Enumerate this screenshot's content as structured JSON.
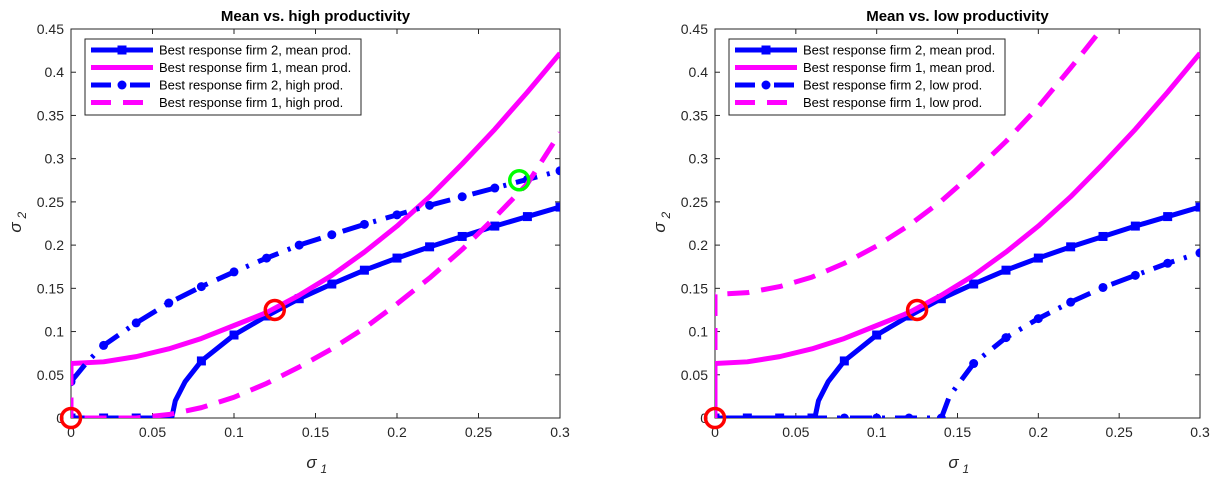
{
  "chart_data": [
    {
      "type": "line",
      "title": "Mean vs. high productivity",
      "xlabel": "σ",
      "xlabel_sub": "1",
      "ylabel": "σ",
      "ylabel_sub": "2",
      "xlim": [
        0,
        0.3
      ],
      "ylim": [
        0,
        0.45
      ],
      "xticks": [
        "0",
        "0.05",
        "0.1",
        "0.15",
        "0.2",
        "0.25",
        "0.3"
      ],
      "xtick_values": [
        0,
        0.05,
        0.1,
        0.15,
        0.2,
        0.25,
        0.3
      ],
      "yticks": [
        "0",
        "0.05",
        "0.1",
        "0.15",
        "0.2",
        "0.25",
        "0.3",
        "0.35",
        "0.4",
        "0.45"
      ],
      "ytick_values": [
        0,
        0.05,
        0.1,
        0.15,
        0.2,
        0.25,
        0.3,
        0.35,
        0.4,
        0.45
      ],
      "grid": false,
      "legend_position": "top-left",
      "series": [
        {
          "name": "Best response firm 2, mean prod.",
          "color": "#0000ff",
          "style": "solid",
          "marker": "square",
          "points": [
            [
              0,
              0
            ],
            [
              0.02,
              0
            ],
            [
              0.04,
              0
            ],
            [
              0.06,
              0
            ],
            [
              0.062,
              0.002
            ],
            [
              0.064,
              0.02
            ],
            [
              0.07,
              0.042
            ],
            [
              0.08,
              0.066
            ],
            [
              0.1,
              0.096
            ],
            [
              0.12,
              0.118
            ],
            [
              0.14,
              0.138
            ],
            [
              0.16,
              0.155
            ],
            [
              0.18,
              0.171
            ],
            [
              0.2,
              0.185
            ],
            [
              0.22,
              0.198
            ],
            [
              0.24,
              0.21
            ],
            [
              0.26,
              0.222
            ],
            [
              0.28,
              0.233
            ],
            [
              0.3,
              0.244
            ]
          ],
          "marker_points": [
            [
              0,
              0
            ],
            [
              0.02,
              0
            ],
            [
              0.04,
              0
            ],
            [
              0.06,
              0
            ],
            [
              0.08,
              0.066
            ],
            [
              0.1,
              0.096
            ],
            [
              0.12,
              0.118
            ],
            [
              0.14,
              0.138
            ],
            [
              0.16,
              0.155
            ],
            [
              0.18,
              0.171
            ],
            [
              0.2,
              0.185
            ],
            [
              0.22,
              0.198
            ],
            [
              0.24,
              0.21
            ],
            [
              0.26,
              0.222
            ],
            [
              0.28,
              0.233
            ],
            [
              0.3,
              0.244
            ]
          ]
        },
        {
          "name": "Best response firm 1, mean prod.",
          "color": "#ff00ff",
          "style": "solid",
          "marker": "none",
          "points": [
            [
              0,
              0.063
            ],
            [
              0.02,
              0.065
            ],
            [
              0.04,
              0.071
            ],
            [
              0.06,
              0.08
            ],
            [
              0.08,
              0.092
            ],
            [
              0.1,
              0.107
            ],
            [
              0.12,
              0.122
            ],
            [
              0.14,
              0.142
            ],
            [
              0.16,
              0.165
            ],
            [
              0.18,
              0.192
            ],
            [
              0.2,
              0.222
            ],
            [
              0.22,
              0.256
            ],
            [
              0.24,
              0.294
            ],
            [
              0.26,
              0.334
            ],
            [
              0.28,
              0.377
            ],
            [
              0.3,
              0.422
            ]
          ]
        },
        {
          "name": "Best response firm 2, high prod.",
          "color": "#0000ff",
          "style": "dashdot",
          "marker": "circle",
          "points": [
            [
              0,
              0.042
            ],
            [
              0.01,
              0.065
            ],
            [
              0.02,
              0.084
            ],
            [
              0.04,
              0.11
            ],
            [
              0.06,
              0.133
            ],
            [
              0.08,
              0.152
            ],
            [
              0.1,
              0.169
            ],
            [
              0.12,
              0.185
            ],
            [
              0.14,
              0.2
            ],
            [
              0.16,
              0.212
            ],
            [
              0.18,
              0.224
            ],
            [
              0.2,
              0.235
            ],
            [
              0.22,
              0.246
            ],
            [
              0.24,
              0.256
            ],
            [
              0.26,
              0.266
            ],
            [
              0.28,
              0.276
            ],
            [
              0.3,
              0.286
            ]
          ],
          "marker_points": [
            [
              0,
              0.042
            ],
            [
              0.02,
              0.084
            ],
            [
              0.04,
              0.11
            ],
            [
              0.06,
              0.133
            ],
            [
              0.08,
              0.152
            ],
            [
              0.1,
              0.169
            ],
            [
              0.12,
              0.185
            ],
            [
              0.14,
              0.2
            ],
            [
              0.16,
              0.212
            ],
            [
              0.18,
              0.224
            ],
            [
              0.2,
              0.235
            ],
            [
              0.22,
              0.246
            ],
            [
              0.24,
              0.256
            ],
            [
              0.26,
              0.266
            ],
            [
              0.28,
              0.276
            ],
            [
              0.3,
              0.286
            ]
          ]
        },
        {
          "name": "Best response firm 1, high prod.",
          "color": "#ff00ff",
          "style": "dashed",
          "marker": "none",
          "points": [
            [
              0,
              0.063
            ],
            [
              0,
              0
            ],
            [
              0.02,
              0
            ],
            [
              0.04,
              0
            ],
            [
              0.06,
              0.004
            ],
            [
              0.08,
              0.012
            ],
            [
              0.1,
              0.024
            ],
            [
              0.12,
              0.04
            ],
            [
              0.14,
              0.059
            ],
            [
              0.16,
              0.08
            ],
            [
              0.18,
              0.104
            ],
            [
              0.2,
              0.132
            ],
            [
              0.22,
              0.162
            ],
            [
              0.24,
              0.195
            ],
            [
              0.26,
              0.232
            ],
            [
              0.28,
              0.271
            ],
            [
              0.3,
              0.33
            ]
          ]
        }
      ],
      "equilibria": [
        {
          "x": 0,
          "y": 0,
          "color": "#ff0000"
        },
        {
          "x": 0.125,
          "y": 0.125,
          "color": "#ff0000"
        },
        {
          "x": 0.275,
          "y": 0.275,
          "color": "#00ff00"
        }
      ]
    },
    {
      "type": "line",
      "title": "Mean vs. low productivity",
      "xlabel": "σ",
      "xlabel_sub": "1",
      "ylabel": "σ",
      "ylabel_sub": "2",
      "xlim": [
        0,
        0.3
      ],
      "ylim": [
        0,
        0.45
      ],
      "xticks": [
        "0",
        "0.05",
        "0.1",
        "0.15",
        "0.2",
        "0.25",
        "0.3"
      ],
      "xtick_values": [
        0,
        0.05,
        0.1,
        0.15,
        0.2,
        0.25,
        0.3
      ],
      "yticks": [
        "0",
        "0.05",
        "0.1",
        "0.15",
        "0.2",
        "0.25",
        "0.3",
        "0.35",
        "0.4",
        "0.45"
      ],
      "ytick_values": [
        0,
        0.05,
        0.1,
        0.15,
        0.2,
        0.25,
        0.3,
        0.35,
        0.4,
        0.45
      ],
      "grid": false,
      "legend_position": "top-left",
      "series": [
        {
          "name": "Best response firm 2, mean prod.",
          "color": "#0000ff",
          "style": "solid",
          "marker": "square",
          "points": [
            [
              0,
              0
            ],
            [
              0.02,
              0
            ],
            [
              0.04,
              0
            ],
            [
              0.06,
              0
            ],
            [
              0.062,
              0.002
            ],
            [
              0.064,
              0.02
            ],
            [
              0.07,
              0.042
            ],
            [
              0.08,
              0.066
            ],
            [
              0.1,
              0.096
            ],
            [
              0.12,
              0.118
            ],
            [
              0.14,
              0.138
            ],
            [
              0.16,
              0.155
            ],
            [
              0.18,
              0.171
            ],
            [
              0.2,
              0.185
            ],
            [
              0.22,
              0.198
            ],
            [
              0.24,
              0.21
            ],
            [
              0.26,
              0.222
            ],
            [
              0.28,
              0.233
            ],
            [
              0.3,
              0.244
            ]
          ],
          "marker_points": [
            [
              0,
              0
            ],
            [
              0.02,
              0
            ],
            [
              0.04,
              0
            ],
            [
              0.06,
              0
            ],
            [
              0.08,
              0.066
            ],
            [
              0.1,
              0.096
            ],
            [
              0.12,
              0.118
            ],
            [
              0.14,
              0.138
            ],
            [
              0.16,
              0.155
            ],
            [
              0.18,
              0.171
            ],
            [
              0.2,
              0.185
            ],
            [
              0.22,
              0.198
            ],
            [
              0.24,
              0.21
            ],
            [
              0.26,
              0.222
            ],
            [
              0.28,
              0.233
            ],
            [
              0.3,
              0.244
            ]
          ]
        },
        {
          "name": "Best response firm 1, mean prod.",
          "color": "#ff00ff",
          "style": "solid",
          "marker": "none",
          "points": [
            [
              0,
              0
            ],
            [
              0,
              0.063
            ],
            [
              0.02,
              0.065
            ],
            [
              0.04,
              0.071
            ],
            [
              0.06,
              0.08
            ],
            [
              0.08,
              0.092
            ],
            [
              0.1,
              0.107
            ],
            [
              0.12,
              0.122
            ],
            [
              0.14,
              0.142
            ],
            [
              0.16,
              0.165
            ],
            [
              0.18,
              0.192
            ],
            [
              0.2,
              0.222
            ],
            [
              0.22,
              0.256
            ],
            [
              0.24,
              0.294
            ],
            [
              0.26,
              0.334
            ],
            [
              0.28,
              0.377
            ],
            [
              0.3,
              0.422
            ]
          ]
        },
        {
          "name": "Best response firm 2, low prod.",
          "color": "#0000ff",
          "style": "dashdot",
          "marker": "circle",
          "points": [
            [
              0,
              0
            ],
            [
              0.02,
              0
            ],
            [
              0.04,
              0
            ],
            [
              0.06,
              0
            ],
            [
              0.08,
              0
            ],
            [
              0.1,
              0
            ],
            [
              0.12,
              0
            ],
            [
              0.14,
              0
            ],
            [
              0.142,
              0.01
            ],
            [
              0.145,
              0.025
            ],
            [
              0.15,
              0.038
            ],
            [
              0.16,
              0.063
            ],
            [
              0.18,
              0.093
            ],
            [
              0.2,
              0.115
            ],
            [
              0.22,
              0.134
            ],
            [
              0.24,
              0.151
            ],
            [
              0.26,
              0.165
            ],
            [
              0.28,
              0.179
            ],
            [
              0.3,
              0.191
            ]
          ],
          "marker_points": [
            [
              0,
              0
            ],
            [
              0.02,
              0
            ],
            [
              0.04,
              0
            ],
            [
              0.06,
              0
            ],
            [
              0.08,
              0
            ],
            [
              0.1,
              0
            ],
            [
              0.12,
              0
            ],
            [
              0.14,
              0
            ],
            [
              0.16,
              0.063
            ],
            [
              0.18,
              0.093
            ],
            [
              0.2,
              0.115
            ],
            [
              0.22,
              0.134
            ],
            [
              0.24,
              0.151
            ],
            [
              0.26,
              0.165
            ],
            [
              0.28,
              0.179
            ],
            [
              0.3,
              0.191
            ]
          ]
        },
        {
          "name": "Best response firm 1, low prod.",
          "color": "#ff00ff",
          "style": "dashed",
          "marker": "none",
          "points": [
            [
              0,
              0
            ],
            [
              0,
              0.143
            ],
            [
              0.02,
              0.145
            ],
            [
              0.04,
              0.152
            ],
            [
              0.06,
              0.163
            ],
            [
              0.08,
              0.179
            ],
            [
              0.1,
              0.199
            ],
            [
              0.12,
              0.223
            ],
            [
              0.14,
              0.251
            ],
            [
              0.16,
              0.284
            ],
            [
              0.18,
              0.32
            ],
            [
              0.2,
              0.36
            ],
            [
              0.22,
              0.405
            ],
            [
              0.24,
              0.452
            ]
          ]
        }
      ],
      "equilibria": [
        {
          "x": 0,
          "y": 0,
          "color": "#ff0000"
        },
        {
          "x": 0.125,
          "y": 0.125,
          "color": "#ff0000"
        }
      ]
    }
  ]
}
